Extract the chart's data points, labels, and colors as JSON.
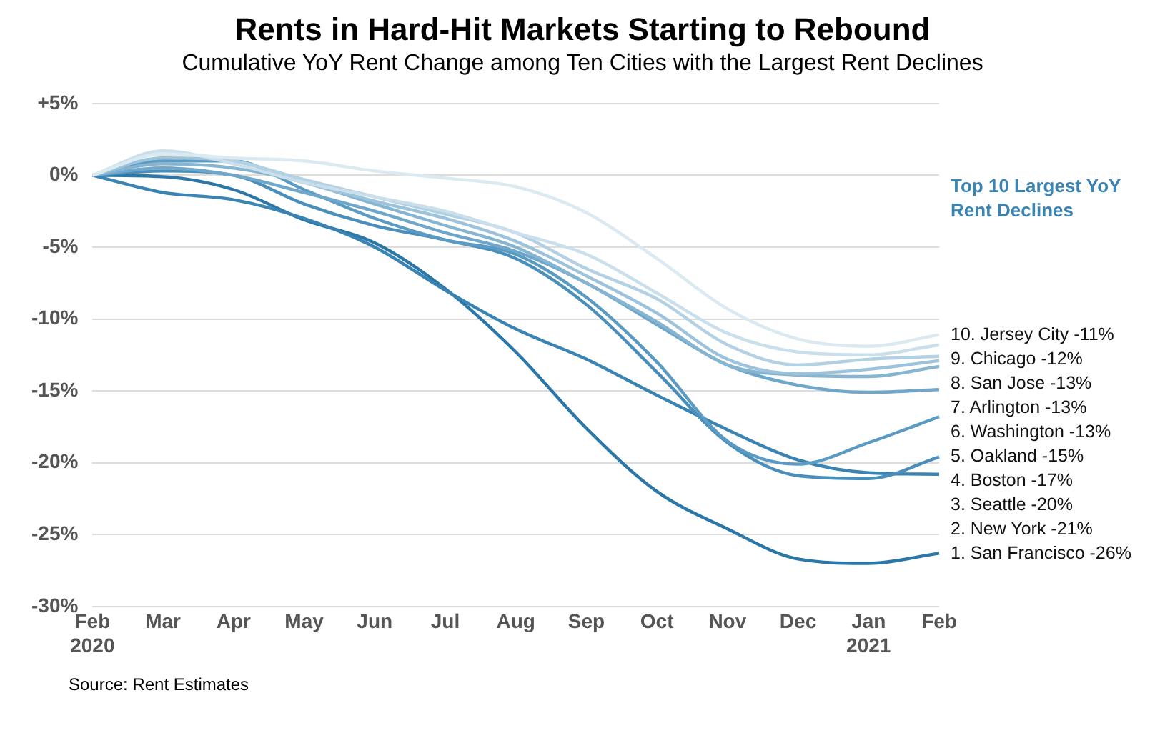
{
  "chart_data": {
    "type": "line",
    "title": "Rents in Hard-Hit Markets Starting to Rebound",
    "subtitle": "Cumulative YoY Rent Change among Ten Cities with the Largest Rent Declines",
    "categories": [
      "Feb 2020",
      "Mar",
      "Apr",
      "May",
      "Jun",
      "Jul",
      "Aug",
      "Sep",
      "Oct",
      "Nov",
      "Dec",
      "Jan 2021",
      "Feb"
    ],
    "ylim": [
      -30,
      5
    ],
    "yticks": [
      {
        "value": 5,
        "label": "+5%"
      },
      {
        "value": 0,
        "label": "0%"
      },
      {
        "value": -5,
        "label": "-5%"
      },
      {
        "value": -10,
        "label": "-10%"
      },
      {
        "value": -15,
        "label": "-15%"
      },
      {
        "value": -20,
        "label": "-20%"
      },
      {
        "value": -25,
        "label": "-25%"
      },
      {
        "value": -30,
        "label": "-30%"
      }
    ],
    "grid": "y",
    "legend": false,
    "marker": "none",
    "line_style": "solid",
    "legend_title": "Top 10 Largest YoY Rent Declines",
    "series": [
      {
        "name": "10. Jersey City -11%",
        "color": "#dbe9f1",
        "values": [
          0,
          1.5,
          1.2,
          1.0,
          0.3,
          -0.2,
          -0.8,
          -2.6,
          -5.8,
          -9.3,
          -11.4,
          -11.9,
          -11.1
        ]
      },
      {
        "name": "9. Chicago -12%",
        "color": "#c9dfeb",
        "values": [
          0,
          1.7,
          0.8,
          -0.5,
          -1.5,
          -2.5,
          -4.0,
          -5.5,
          -8.2,
          -11.0,
          -12.3,
          -12.5,
          -11.8
        ]
      },
      {
        "name": "8. San Jose -13%",
        "color": "#b3d1e3",
        "values": [
          0,
          1.5,
          1.0,
          -0.3,
          -1.5,
          -2.7,
          -4.0,
          -6.5,
          -8.6,
          -11.8,
          -13.2,
          -12.8,
          -12.6
        ]
      },
      {
        "name": "7. Arlington -13%",
        "color": "#9cc3db",
        "values": [
          0,
          1.2,
          1.0,
          -0.5,
          -1.8,
          -3.0,
          -4.6,
          -7.0,
          -9.6,
          -12.8,
          -13.8,
          -13.5,
          -12.9
        ]
      },
      {
        "name": "6. Washington -13%",
        "color": "#86b5d2",
        "values": [
          0,
          0.8,
          0.5,
          -0.5,
          -2.0,
          -3.5,
          -5.0,
          -7.5,
          -10.2,
          -13.2,
          -13.9,
          -14.0,
          -13.3
        ]
      },
      {
        "name": "5. Oakland -15%",
        "color": "#6fa7ca",
        "values": [
          0,
          0.5,
          0,
          -1.2,
          -2.5,
          -4.0,
          -5.3,
          -7.5,
          -10.4,
          -13.2,
          -14.6,
          -15.1,
          -14.9
        ]
      },
      {
        "name": "4. Boston -17%",
        "color": "#5b9bc3",
        "values": [
          0,
          1.0,
          1.0,
          -1.0,
          -3.0,
          -4.5,
          -5.5,
          -8.5,
          -13.0,
          -18.5,
          -20.1,
          -18.6,
          -16.8
        ]
      },
      {
        "name": "3. Seattle -20%",
        "color": "#4a8fbb",
        "values": [
          0,
          0.3,
          0,
          -2.0,
          -3.5,
          -4.5,
          -5.8,
          -9.0,
          -13.7,
          -18.6,
          -20.9,
          -21.1,
          -19.6
        ]
      },
      {
        "name": "2. New York -21%",
        "color": "#3a84b3",
        "values": [
          0,
          -1.2,
          -1.7,
          -3.0,
          -5.0,
          -8.0,
          -10.7,
          -12.8,
          -15.3,
          -17.7,
          -19.8,
          -20.7,
          -20.8
        ]
      },
      {
        "name": "1. San Francisco -26%",
        "color": "#2a77a8",
        "values": [
          0,
          -0.1,
          -1.0,
          -3.1,
          -4.7,
          -7.9,
          -12.3,
          -17.6,
          -22.0,
          -24.6,
          -26.7,
          -27.0,
          -26.3
        ]
      }
    ],
    "annotations": [
      "Source: Rent Estimates"
    ]
  }
}
